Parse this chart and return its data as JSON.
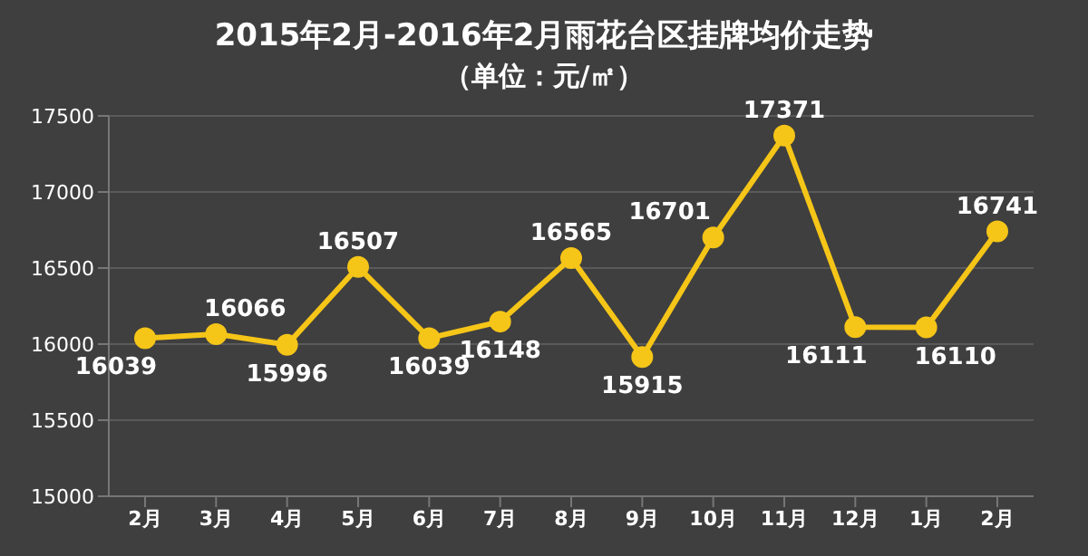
{
  "chart_data": {
    "type": "line",
    "title": "2015年2月-2016年2月雨花台区挂牌均价走势",
    "subtitle": "（单位：元/㎡）",
    "categories": [
      "2月",
      "3月",
      "4月",
      "5月",
      "6月",
      "7月",
      "8月",
      "9月",
      "10月",
      "11月",
      "12月",
      "1月",
      "2月"
    ],
    "series": [
      {
        "color": "#f5c518",
        "values": [
          16039,
          16066,
          15996,
          16507,
          16039,
          16148,
          16565,
          15915,
          16701,
          17371,
          16111,
          16110,
          16741
        ]
      }
    ],
    "ylim": [
      15000,
      17500
    ],
    "yticks": [
      15000,
      15500,
      16000,
      16500,
      17000,
      17500
    ],
    "grid": "y",
    "legend": false,
    "marker": "circle",
    "line_style": "solid",
    "data_labels": true
  }
}
